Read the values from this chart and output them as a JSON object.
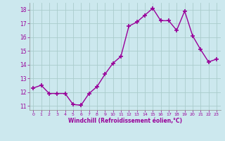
{
  "x": [
    0,
    1,
    2,
    3,
    4,
    5,
    6,
    7,
    8,
    9,
    10,
    11,
    12,
    13,
    14,
    15,
    16,
    17,
    18,
    19,
    20,
    21,
    22,
    23
  ],
  "y": [
    12.3,
    12.5,
    11.9,
    11.9,
    11.9,
    11.1,
    11.05,
    11.9,
    12.4,
    13.3,
    14.1,
    14.6,
    16.8,
    17.1,
    17.6,
    18.1,
    17.2,
    17.2,
    16.5,
    17.9,
    16.1,
    15.1,
    14.2,
    14.4
  ],
  "line_color": "#990099",
  "marker": "+",
  "marker_size": 4,
  "marker_lw": 1.2,
  "bg_color": "#cce8ee",
  "grid_color": "#aacccc",
  "xlabel": "Windchill (Refroidissement éolien,°C)",
  "xlabel_color": "#990099",
  "tick_color": "#990099",
  "ylim": [
    10.7,
    18.5
  ],
  "xlim": [
    -0.5,
    23.5
  ],
  "yticks": [
    11,
    12,
    13,
    14,
    15,
    16,
    17,
    18
  ],
  "xticks": [
    0,
    1,
    2,
    3,
    4,
    5,
    6,
    7,
    8,
    9,
    10,
    11,
    12,
    13,
    14,
    15,
    16,
    17,
    18,
    19,
    20,
    21,
    22,
    23
  ],
  "spine_color": "#888888",
  "line_width": 1.0
}
